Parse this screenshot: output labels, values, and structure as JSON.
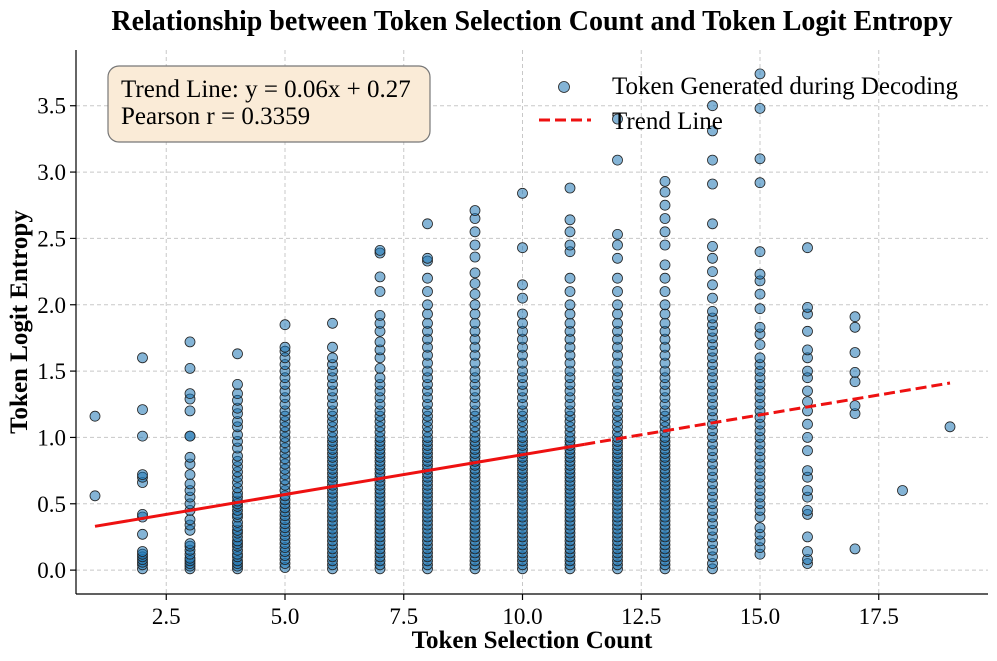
{
  "chart_data": {
    "type": "scatter",
    "title": "Relationship between Token Selection Count and Token Logit Entropy",
    "xlabel": "Token Selection Count",
    "ylabel": "Token Logit Entropy",
    "xlim": [
      0.6,
      19.8
    ],
    "ylim": [
      -0.18,
      3.92
    ],
    "xticks": [
      2.5,
      5.0,
      7.5,
      10.0,
      12.5,
      15.0,
      17.5
    ],
    "xtick_labels": [
      "2.5",
      "5.0",
      "7.5",
      "10.0",
      "12.5",
      "15.0",
      "17.5"
    ],
    "yticks": [
      0.0,
      0.5,
      1.0,
      1.5,
      2.0,
      2.5,
      3.0,
      3.5
    ],
    "ytick_labels": [
      "0.0",
      "0.5",
      "1.0",
      "1.5",
      "2.0",
      "2.5",
      "3.0",
      "3.5"
    ],
    "grid": true,
    "legend_position": "top-right",
    "series": [
      {
        "name": "Token Generated during Decoding",
        "kind": "scatter",
        "color": "#1f77b4",
        "edge_color": "#222222",
        "points_by_x": [
          {
            "x": 1,
            "y": [
              0.56,
              1.16
            ]
          },
          {
            "x": 2,
            "y": [
              0.01,
              0.04,
              0.06,
              0.08,
              0.1,
              0.12,
              0.14,
              0.27,
              0.4,
              0.42,
              0.66,
              0.7,
              0.72,
              1.01,
              1.21,
              1.6
            ]
          },
          {
            "x": 3,
            "y": [
              0.01,
              0.03,
              0.05,
              0.07,
              0.09,
              0.12,
              0.15,
              0.18,
              0.2,
              0.3,
              0.34,
              0.38,
              0.45,
              0.5,
              0.55,
              0.6,
              0.65,
              0.72,
              0.8,
              0.85,
              1.01,
              1.01,
              1.2,
              1.29,
              1.33,
              1.52,
              1.72
            ]
          },
          {
            "x": 4,
            "y": [
              0.01,
              0.03,
              0.05,
              0.07,
              0.1,
              0.12,
              0.15,
              0.18,
              0.2,
              0.22,
              0.25,
              0.28,
              0.3,
              0.33,
              0.36,
              0.4,
              0.42,
              0.45,
              0.48,
              0.5,
              0.52,
              0.55,
              0.58,
              0.62,
              0.66,
              0.7,
              0.74,
              0.78,
              0.82,
              0.86,
              0.92,
              0.97,
              1.02,
              1.08,
              1.12,
              1.18,
              1.22,
              1.28,
              1.33,
              1.4,
              1.63
            ]
          },
          {
            "x": 5,
            "y": [
              0.02,
              0.05,
              0.08,
              0.11,
              0.14,
              0.17,
              0.2,
              0.23,
              0.26,
              0.29,
              0.32,
              0.35,
              0.38,
              0.41,
              0.44,
              0.47,
              0.5,
              0.53,
              0.56,
              0.6,
              0.64,
              0.68,
              0.72,
              0.76,
              0.8,
              0.84,
              0.88,
              0.92,
              0.96,
              1.0,
              1.04,
              1.08,
              1.12,
              1.16,
              1.2,
              1.25,
              1.3,
              1.35,
              1.4,
              1.45,
              1.5,
              1.55,
              1.6,
              1.65,
              1.68,
              1.85
            ]
          },
          {
            "x": 6,
            "y": [
              0.01,
              0.04,
              0.07,
              0.1,
              0.13,
              0.16,
              0.19,
              0.22,
              0.25,
              0.28,
              0.31,
              0.34,
              0.37,
              0.4,
              0.43,
              0.46,
              0.49,
              0.52,
              0.55,
              0.58,
              0.61,
              0.64,
              0.67,
              0.7,
              0.73,
              0.76,
              0.79,
              0.82,
              0.85,
              0.88,
              0.91,
              0.94,
              0.97,
              1.0,
              1.04,
              1.08,
              1.12,
              1.16,
              1.2,
              1.25,
              1.3,
              1.35,
              1.4,
              1.45,
              1.5,
              1.55,
              1.6,
              1.68,
              1.86
            ]
          },
          {
            "x": 7,
            "y": [
              0.01,
              0.04,
              0.07,
              0.1,
              0.13,
              0.16,
              0.19,
              0.22,
              0.25,
              0.28,
              0.31,
              0.34,
              0.37,
              0.4,
              0.43,
              0.46,
              0.49,
              0.52,
              0.55,
              0.58,
              0.61,
              0.64,
              0.67,
              0.7,
              0.73,
              0.76,
              0.79,
              0.82,
              0.85,
              0.88,
              0.91,
              0.94,
              0.97,
              1.0,
              1.04,
              1.08,
              1.12,
              1.16,
              1.2,
              1.25,
              1.3,
              1.35,
              1.4,
              1.45,
              1.52,
              1.6,
              1.66,
              1.72,
              1.8,
              1.86,
              1.92,
              2.1,
              2.21,
              2.39,
              2.41
            ]
          },
          {
            "x": 8,
            "y": [
              0.01,
              0.04,
              0.07,
              0.1,
              0.13,
              0.16,
              0.19,
              0.22,
              0.25,
              0.28,
              0.31,
              0.34,
              0.37,
              0.4,
              0.43,
              0.46,
              0.49,
              0.52,
              0.55,
              0.58,
              0.61,
              0.64,
              0.67,
              0.7,
              0.73,
              0.76,
              0.79,
              0.82,
              0.85,
              0.88,
              0.91,
              0.94,
              0.97,
              1.0,
              1.04,
              1.08,
              1.12,
              1.16,
              1.2,
              1.25,
              1.3,
              1.35,
              1.4,
              1.45,
              1.5,
              1.56,
              1.62,
              1.68,
              1.74,
              1.8,
              1.86,
              1.93,
              2.0,
              2.1,
              2.2,
              2.33,
              2.35,
              2.61
            ]
          },
          {
            "x": 9,
            "y": [
              0.01,
              0.04,
              0.07,
              0.1,
              0.13,
              0.16,
              0.19,
              0.22,
              0.25,
              0.28,
              0.31,
              0.34,
              0.37,
              0.4,
              0.43,
              0.46,
              0.49,
              0.52,
              0.55,
              0.58,
              0.61,
              0.64,
              0.67,
              0.7,
              0.73,
              0.76,
              0.79,
              0.82,
              0.85,
              0.88,
              0.91,
              0.94,
              0.97,
              1.0,
              1.04,
              1.08,
              1.12,
              1.16,
              1.2,
              1.25,
              1.3,
              1.35,
              1.4,
              1.45,
              1.5,
              1.56,
              1.62,
              1.68,
              1.74,
              1.8,
              1.86,
              1.93,
              2.0,
              2.08,
              2.16,
              2.24,
              2.36,
              2.45,
              2.55,
              2.65,
              2.71
            ]
          },
          {
            "x": 10,
            "y": [
              0.01,
              0.04,
              0.07,
              0.1,
              0.13,
              0.16,
              0.19,
              0.22,
              0.25,
              0.28,
              0.31,
              0.34,
              0.37,
              0.4,
              0.43,
              0.46,
              0.49,
              0.52,
              0.55,
              0.58,
              0.61,
              0.64,
              0.67,
              0.7,
              0.73,
              0.76,
              0.79,
              0.82,
              0.85,
              0.88,
              0.91,
              0.94,
              0.97,
              1.0,
              1.04,
              1.08,
              1.12,
              1.16,
              1.2,
              1.25,
              1.3,
              1.35,
              1.4,
              1.45,
              1.5,
              1.56,
              1.62,
              1.68,
              1.74,
              1.8,
              1.86,
              1.93,
              2.05,
              2.15,
              2.43,
              2.84
            ]
          },
          {
            "x": 11,
            "y": [
              0.01,
              0.04,
              0.07,
              0.1,
              0.13,
              0.16,
              0.19,
              0.22,
              0.25,
              0.28,
              0.31,
              0.34,
              0.37,
              0.4,
              0.43,
              0.46,
              0.49,
              0.52,
              0.55,
              0.58,
              0.61,
              0.64,
              0.67,
              0.7,
              0.73,
              0.76,
              0.79,
              0.82,
              0.85,
              0.88,
              0.91,
              0.94,
              0.97,
              1.0,
              1.04,
              1.08,
              1.12,
              1.16,
              1.2,
              1.25,
              1.3,
              1.35,
              1.4,
              1.45,
              1.5,
              1.56,
              1.62,
              1.68,
              1.74,
              1.8,
              1.86,
              1.93,
              2.0,
              2.1,
              2.2,
              2.4,
              2.45,
              2.55,
              2.64,
              2.88
            ]
          },
          {
            "x": 12,
            "y": [
              0.01,
              0.04,
              0.07,
              0.1,
              0.13,
              0.16,
              0.19,
              0.22,
              0.25,
              0.28,
              0.31,
              0.34,
              0.37,
              0.4,
              0.43,
              0.46,
              0.49,
              0.52,
              0.55,
              0.58,
              0.61,
              0.64,
              0.67,
              0.7,
              0.73,
              0.76,
              0.79,
              0.82,
              0.85,
              0.88,
              0.91,
              0.94,
              0.97,
              1.0,
              1.04,
              1.08,
              1.12,
              1.16,
              1.2,
              1.25,
              1.3,
              1.35,
              1.4,
              1.45,
              1.5,
              1.56,
              1.62,
              1.68,
              1.74,
              1.8,
              1.86,
              1.93,
              2.0,
              2.1,
              2.2,
              2.35,
              2.45,
              2.53,
              3.09,
              3.4
            ]
          },
          {
            "x": 13,
            "y": [
              0.01,
              0.04,
              0.07,
              0.1,
              0.13,
              0.16,
              0.19,
              0.22,
              0.25,
              0.28,
              0.31,
              0.34,
              0.37,
              0.4,
              0.43,
              0.46,
              0.49,
              0.52,
              0.55,
              0.58,
              0.61,
              0.64,
              0.67,
              0.7,
              0.73,
              0.76,
              0.79,
              0.82,
              0.85,
              0.88,
              0.91,
              0.94,
              0.97,
              1.0,
              1.04,
              1.08,
              1.12,
              1.16,
              1.2,
              1.25,
              1.3,
              1.35,
              1.4,
              1.45,
              1.5,
              1.56,
              1.62,
              1.68,
              1.74,
              1.8,
              1.86,
              1.93,
              2.0,
              2.1,
              2.2,
              2.3,
              2.45,
              2.55,
              2.65,
              2.75,
              2.85,
              2.93
            ]
          },
          {
            "x": 14,
            "y": [
              0.01,
              0.05,
              0.1,
              0.15,
              0.2,
              0.25,
              0.3,
              0.35,
              0.4,
              0.45,
              0.5,
              0.55,
              0.6,
              0.65,
              0.7,
              0.75,
              0.8,
              0.85,
              0.9,
              0.95,
              1.0,
              1.05,
              1.1,
              1.15,
              1.2,
              1.25,
              1.3,
              1.35,
              1.4,
              1.45,
              1.5,
              1.55,
              1.6,
              1.65,
              1.7,
              1.75,
              1.8,
              1.85,
              1.9,
              1.95,
              2.05,
              2.15,
              2.25,
              2.35,
              2.44,
              2.61,
              2.91,
              3.09,
              3.31,
              3.5
            ]
          },
          {
            "x": 15,
            "y": [
              0.12,
              0.17,
              0.22,
              0.27,
              0.32,
              0.4,
              0.45,
              0.5,
              0.55,
              0.6,
              0.65,
              0.7,
              0.75,
              0.8,
              0.85,
              0.9,
              0.95,
              1.0,
              1.05,
              1.1,
              1.15,
              1.2,
              1.25,
              1.3,
              1.35,
              1.4,
              1.45,
              1.5,
              1.55,
              1.6,
              1.7,
              1.78,
              1.83,
              1.97,
              2.08,
              2.18,
              2.23,
              2.4,
              2.92,
              3.1,
              3.48,
              3.74
            ]
          },
          {
            "x": 16,
            "y": [
              0.05,
              0.08,
              0.14,
              0.25,
              0.42,
              0.45,
              0.55,
              0.6,
              0.7,
              0.75,
              0.9,
              1.0,
              1.1,
              1.2,
              1.27,
              1.35,
              1.45,
              1.5,
              1.6,
              1.66,
              1.8,
              1.93,
              1.98,
              2.43
            ]
          },
          {
            "x": 17,
            "y": [
              0.16,
              1.18,
              1.24,
              1.42,
              1.49,
              1.64,
              1.83,
              1.91
            ]
          },
          {
            "x": 18,
            "y": [
              0.6
            ]
          },
          {
            "x": 19,
            "y": [
              1.08
            ]
          }
        ]
      },
      {
        "name": "Trend Line",
        "kind": "line",
        "color": "#ee1111",
        "slope": 0.06,
        "intercept": 0.27,
        "x_range": [
          1,
          19
        ]
      }
    ],
    "annotation": {
      "line1": "Trend Line: y = 0.06x + 0.27",
      "line2": "Pearson r = 0.3359",
      "background": "#faebd7",
      "border": "#777777"
    }
  }
}
